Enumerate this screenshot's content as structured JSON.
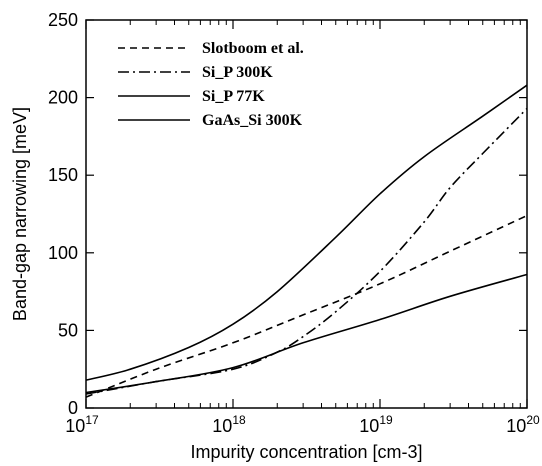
{
  "chart_data": {
    "type": "line",
    "xlabel": "Impurity concentration [cm-3]",
    "ylabel": "Band-gap narrowing [meV]",
    "xscale": "log",
    "xlim": [
      1e+17,
      1e+20
    ],
    "ylim": [
      0,
      250
    ],
    "x_ticks": [
      {
        "base": "10",
        "exp": "17",
        "value": 1e+17
      },
      {
        "base": "10",
        "exp": "18",
        "value": 1e+18
      },
      {
        "base": "10",
        "exp": "19",
        "value": 1e+19
      },
      {
        "base": "10",
        "exp": "20",
        "value": 1e+20
      }
    ],
    "y_ticks": [
      "0",
      "50",
      "100",
      "150",
      "200",
      "250"
    ],
    "grid": false,
    "legend_position": "top-left",
    "series": [
      {
        "name": "Slotboom et al.",
        "dash": "dashed",
        "x": [
          1e+17,
          3e+17,
          1e+18,
          3e+18,
          1e+19,
          3e+19,
          1e+20
        ],
        "y": [
          7,
          25,
          42,
          60,
          80,
          101,
          124
        ]
      },
      {
        "name": "Si_P 300K",
        "dash": "dash-dot",
        "x": [
          1e+17,
          3e+17,
          1e+18,
          2e+18,
          3e+18,
          5e+18,
          1e+19,
          2e+19,
          3e+19,
          5e+19,
          1e+20
        ],
        "y": [
          9,
          17,
          25,
          36,
          46,
          62,
          88,
          120,
          142,
          164,
          193
        ]
      },
      {
        "name": "Si_P 77K",
        "dash": "solid",
        "x": [
          1e+17,
          2e+17,
          5e+17,
          1e+18,
          2e+18,
          5e+18,
          1e+19,
          2e+19,
          5e+19,
          1e+20
        ],
        "y": [
          18,
          25,
          39,
          54,
          75,
          110,
          138,
          162,
          188,
          208
        ]
      },
      {
        "name": "GaAs_Si 300K",
        "dash": "solid",
        "x": [
          1e+17,
          3e+17,
          1e+18,
          3e+18,
          1e+19,
          3e+19,
          1e+20
        ],
        "y": [
          10,
          17,
          26,
          42,
          57,
          72,
          86
        ]
      }
    ]
  }
}
